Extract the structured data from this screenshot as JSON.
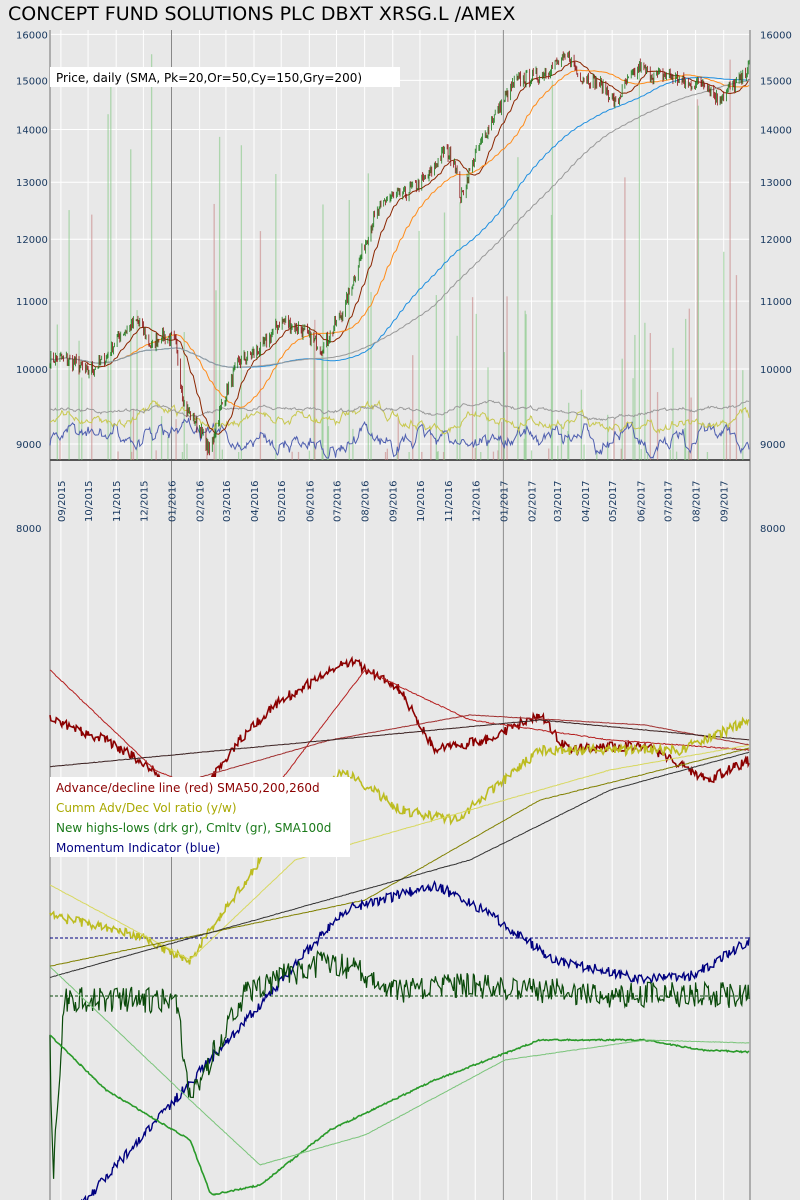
{
  "title": "CONCEPT FUND SOLUTIONS PLC DBXT XRSG.L /AMEX",
  "colors": {
    "background": "#e8e8e8",
    "grid": "#ffffff",
    "candle_up": "#1a7a1a",
    "candle_down": "#8b1010",
    "sma_pk": "#8b2500",
    "sma_or": "#ff8c1a",
    "sma_cy": "#1f8fe0",
    "sma_gry": "#999999",
    "adv_dec": "#8b0000",
    "cumm_vol": "#bcbc20",
    "new_hl": "#0a4a0a",
    "new_hl_cum": "#2a9a2a",
    "momentum": "#000080"
  },
  "chart_data": [
    {
      "type": "candlestick",
      "legend": "Price, daily (SMA, Pk=20,Or=50,Cy=150,Gry=200)",
      "y_ticks": [
        8000,
        9000,
        10000,
        11000,
        12000,
        13000,
        14000,
        15000,
        16000
      ],
      "x_tick_labels": [
        "09/2015",
        "10/2015",
        "11/2015",
        "12/2015",
        "01/2016",
        "02/2016",
        "03/2016",
        "04/2016",
        "05/2016",
        "06/2016",
        "07/2016",
        "08/2016",
        "09/2016",
        "10/2016",
        "11/2016",
        "12/2016",
        "01/2017",
        "02/2017",
        "03/2017",
        "04/2017",
        "05/2017",
        "06/2017",
        "07/2017",
        "08/2017",
        "09/2017"
      ],
      "close_anchors": [
        [
          "2015-09-01",
          10150
        ],
        [
          "2015-09-15",
          10100
        ],
        [
          "2015-10-01",
          9950
        ],
        [
          "2015-10-20",
          10150
        ],
        [
          "2015-11-05",
          10500
        ],
        [
          "2015-11-25",
          10700
        ],
        [
          "2015-12-10",
          10300
        ],
        [
          "2015-12-20",
          10500
        ],
        [
          "2016-01-05",
          10400
        ],
        [
          "2016-01-15",
          9500
        ],
        [
          "2016-02-01",
          9200
        ],
        [
          "2016-02-12",
          8900
        ],
        [
          "2016-02-25",
          9500
        ],
        [
          "2016-03-15",
          10100
        ],
        [
          "2016-04-10",
          10300
        ],
        [
          "2016-05-01",
          10700
        ],
        [
          "2016-05-20",
          10600
        ],
        [
          "2016-06-15",
          10300
        ],
        [
          "2016-06-24",
          10500
        ],
        [
          "2016-07-10",
          10900
        ],
        [
          "2016-07-25",
          11600
        ],
        [
          "2016-08-10",
          12300
        ],
        [
          "2016-08-25",
          12700
        ],
        [
          "2016-09-15",
          12800
        ],
        [
          "2016-10-10",
          13100
        ],
        [
          "2016-10-28",
          13600
        ],
        [
          "2016-11-08",
          13400
        ],
        [
          "2016-11-15",
          12700
        ],
        [
          "2016-12-01",
          13500
        ],
        [
          "2016-12-20",
          14200
        ],
        [
          "2017-01-15",
          15000
        ],
        [
          "2017-02-10",
          15100
        ],
        [
          "2017-02-28",
          15350
        ],
        [
          "2017-03-15",
          15500
        ],
        [
          "2017-03-25",
          15100
        ],
        [
          "2017-04-10",
          15000
        ],
        [
          "2017-04-25",
          14800
        ],
        [
          "2017-05-05",
          14500
        ],
        [
          "2017-05-15",
          14900
        ],
        [
          "2017-06-01",
          15300
        ],
        [
          "2017-06-15",
          15100
        ],
        [
          "2017-07-05",
          15100
        ],
        [
          "2017-07-25",
          14900
        ],
        [
          "2017-08-10",
          15000
        ],
        [
          "2017-08-25",
          14600
        ],
        [
          "2017-09-05",
          14800
        ],
        [
          "2017-09-20",
          15000
        ],
        [
          "2017-09-28",
          15300
        ]
      ]
    },
    {
      "type": "line",
      "legend": [
        "Advance/decline line (red) SMA50,200,260d",
        "Cumm Adv/Dec Vol ratio (y/w)",
        "New highs-lows (drk gr), Cmltv (gr), SMA100d",
        "Momentum Indicator (blue)"
      ]
    }
  ]
}
